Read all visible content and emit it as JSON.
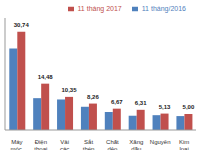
{
  "chart_data": {
    "type": "bar",
    "categories": [
      "Máy móc,",
      "Điện thoại",
      "Vải các",
      "Sắt thép",
      "Chất dẻo",
      "Xăng dầu",
      "Nguyên",
      "Kim loại"
    ],
    "series": [
      {
        "name": "11 tháng/2016",
        "color": "#4f81bd",
        "values": [
          25.47,
          9.95,
          9.54,
          7.26,
          5.62,
          4.46,
          4.63,
          4.35
        ]
      },
      {
        "name": "11 tháng 2017",
        "color": "#c0504d",
        "values": [
          30.74,
          14.48,
          10.35,
          8.26,
          6.67,
          6.31,
          5.13,
          5.0
        ],
        "data_labels": true,
        "value_labels": [
          "30,74",
          "14,48",
          "10,35",
          "8,26",
          "6,67",
          "6,31",
          "5,13",
          "5,00"
        ]
      }
    ],
    "ylim": [
      0,
      35
    ],
    "tick_labels": "x",
    "legend": "top-right"
  }
}
